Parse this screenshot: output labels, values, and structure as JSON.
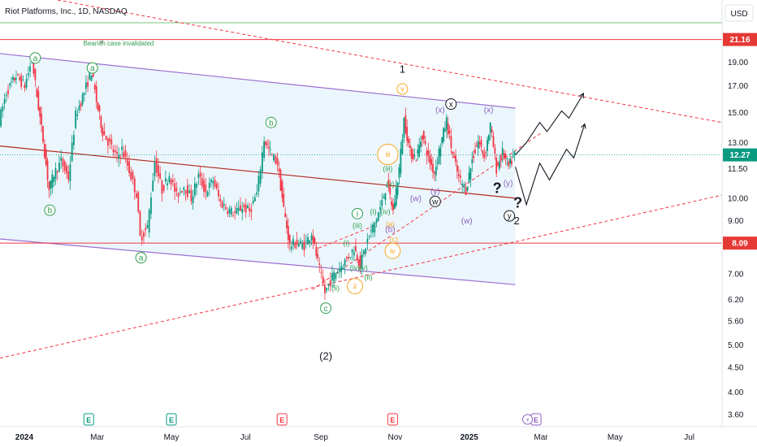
{
  "header": {
    "title": "Riot Platforms, Inc., 1D, NASDAQ",
    "currency": "USD"
  },
  "colors": {
    "up": "#089981",
    "down": "#f23645",
    "channel_line": "#9c6fd1",
    "channel_fill": "#e6f4fb",
    "trend": "#f23645",
    "price_badge": "#089981",
    "level_badge": "#e53935",
    "green_label": "#2e9e4f",
    "orange_label": "#f5a623",
    "purple_label": "#8e5fc2"
  },
  "price_badges": [
    {
      "label": "21.16",
      "value": 21.16,
      "kind": "level"
    },
    {
      "label": "12.27",
      "value": 12.27,
      "kind": "price"
    },
    {
      "label": "8.09",
      "value": 8.09,
      "kind": "level"
    }
  ],
  "annotations": {
    "bearish_note": "Bearish case invalidated"
  },
  "wave_labels": [
    {
      "text": "a",
      "x": "2024-01-10",
      "y": 19.4,
      "style": "green-circle"
    },
    {
      "text": "b",
      "x": "2024-01-22",
      "y": 9.45,
      "style": "green-circle"
    },
    {
      "text": "a",
      "x": "2024-02-26",
      "y": 18.5,
      "style": "green-circle"
    },
    {
      "text": "a",
      "x": "2024-04-06",
      "y": 7.55,
      "style": "green-circle"
    },
    {
      "text": "b",
      "x": "2024-07-22",
      "y": 14.3,
      "style": "green-circle"
    },
    {
      "text": "c",
      "x": "2024-09-05",
      "y": 5.95,
      "style": "green-circle"
    },
    {
      "text": "(2)",
      "x": "2024-09-05",
      "y": 4.75,
      "style": "black-text"
    },
    {
      "text": "1",
      "x": "2024-11-07",
      "y": 18.4,
      "style": "black-text"
    },
    {
      "text": "v",
      "x": "2024-11-07",
      "y": 16.75,
      "style": "orange-circle"
    },
    {
      "text": "x",
      "x": "2024-12-17",
      "y": 15.6,
      "style": "black-circle"
    },
    {
      "text": "(x)",
      "x": "2024-12-08",
      "y": 15.2,
      "style": "purple-text"
    },
    {
      "text": "(x)",
      "x": "2025-01-17",
      "y": 15.2,
      "style": "purple-text"
    },
    {
      "text": "(w)",
      "x": "2024-11-18",
      "y": 10.0,
      "style": "purple-text"
    },
    {
      "text": "w",
      "x": "2024-12-04",
      "y": 9.85,
      "style": "black-circle"
    },
    {
      "text": "(y)",
      "x": "2024-12-04",
      "y": 10.35,
      "style": "purple-text"
    },
    {
      "text": "(w)",
      "x": "2024-12-30",
      "y": 9.0,
      "style": "purple-text"
    },
    {
      "text": "(y)",
      "x": "2025-02-02",
      "y": 10.75,
      "style": "purple-text"
    },
    {
      "text": "y",
      "x": "2025-02-03",
      "y": 9.2,
      "style": "black-circle"
    },
    {
      "text": "2",
      "x": "2025-02-09",
      "y": 9.0,
      "style": "black-text"
    },
    {
      "text": "?",
      "x": "2025-01-24",
      "y": 10.5,
      "style": "black-big"
    },
    {
      "text": "?",
      "x": "2025-02-10",
      "y": 9.8,
      "style": "black-big"
    },
    {
      "text": "iii",
      "x": "2024-10-26",
      "y": 12.3,
      "style": "orange-circle"
    },
    {
      "text": "(iii)",
      "x": "2024-10-26",
      "y": 11.5,
      "style": "green-text"
    },
    {
      "text": "(v)",
      "x": "2024-10-28",
      "y": 10.7,
      "style": "green-text"
    },
    {
      "text": "(iv)",
      "x": "2024-10-24",
      "y": 9.4,
      "style": "green-text"
    },
    {
      "text": "(a)",
      "x": "2024-10-28",
      "y": 8.85,
      "style": "orange-text"
    },
    {
      "text": "(b)",
      "x": "2024-10-28",
      "y": 8.65,
      "style": "purple-text"
    },
    {
      "text": "(c)",
      "x": "2024-10-31",
      "y": 8.25,
      "style": "orange-text"
    },
    {
      "text": "iv",
      "x": "2024-10-30",
      "y": 7.8,
      "style": "orange-circle"
    },
    {
      "text": "(i)",
      "x": "2024-10-14",
      "y": 9.4,
      "style": "green-text"
    },
    {
      "text": "i",
      "x": "2024-10-01",
      "y": 9.3,
      "style": "green-circle"
    },
    {
      "text": "(iii)",
      "x": "2024-10-01",
      "y": 8.8,
      "style": "green-text"
    },
    {
      "text": "(i)",
      "x": "2024-09-22",
      "y": 8.1,
      "style": "green-text"
    },
    {
      "text": "(v)",
      "x": "2024-10-06",
      "y": 7.2,
      "style": "green-text"
    },
    {
      "text": "(iv)",
      "x": "2024-09-29",
      "y": 7.2,
      "style": "green-text"
    },
    {
      "text": "(ii)",
      "x": "2024-10-10",
      "y": 6.9,
      "style": "green-text"
    },
    {
      "text": "(ii)",
      "x": "2024-09-13",
      "y": 6.55,
      "style": "green-text"
    },
    {
      "text": "ii",
      "x": "2024-09-29",
      "y": 6.6,
      "style": "orange-circle"
    }
  ],
  "earnings_marks": [
    {
      "x": "2024-02-23",
      "label": "E",
      "kind": "green"
    },
    {
      "x": "2024-05-01",
      "label": "E",
      "kind": "green"
    },
    {
      "x": "2024-07-31",
      "label": "E",
      "kind": "red"
    },
    {
      "x": "2024-10-30",
      "label": "E",
      "kind": "red"
    },
    {
      "x": "2025-02-25",
      "label": "E",
      "kind": "purple"
    }
  ],
  "chart_data": {
    "type": "candlestick",
    "title": "Riot Platforms, Inc., 1D, NASDAQ",
    "scale": "log",
    "ylim": [
      3.4,
      25.5
    ],
    "xlim": [
      "2023-12-12",
      "2025-07-28"
    ],
    "x_ticks": [
      {
        "label": "2024",
        "date": "2024-01-01"
      },
      {
        "label": "Mar",
        "date": "2024-03-01"
      },
      {
        "label": "May",
        "date": "2024-05-01"
      },
      {
        "label": "Jul",
        "date": "2024-07-01"
      },
      {
        "label": "Sep",
        "date": "2024-09-01"
      },
      {
        "label": "Nov",
        "date": "2024-11-01"
      },
      {
        "label": "2025",
        "date": "2025-01-01"
      },
      {
        "label": "Mar",
        "date": "2025-03-01"
      },
      {
        "label": "May",
        "date": "2025-05-01"
      },
      {
        "label": "Jul",
        "date": "2025-07-01"
      }
    ],
    "y_ticks": [
      19.0,
      17.0,
      15.0,
      13.0,
      11.5,
      10.0,
      9.0,
      7.0,
      6.2,
      5.6,
      5.0,
      4.5,
      4.0,
      3.6
    ],
    "close_series": [
      {
        "x": "2023-12-12",
        "y": 14.4
      },
      {
        "x": "2023-12-18",
        "y": 16.5
      },
      {
        "x": "2023-12-26",
        "y": 17.8
      },
      {
        "x": "2024-01-02",
        "y": 17.0
      },
      {
        "x": "2024-01-08",
        "y": 19.2
      },
      {
        "x": "2024-01-12",
        "y": 16.2
      },
      {
        "x": "2024-01-17",
        "y": 13.2
      },
      {
        "x": "2024-01-22",
        "y": 10.4
      },
      {
        "x": "2024-01-26",
        "y": 11.2
      },
      {
        "x": "2024-02-01",
        "y": 11.9
      },
      {
        "x": "2024-02-07",
        "y": 11.0
      },
      {
        "x": "2024-02-13",
        "y": 14.8
      },
      {
        "x": "2024-02-20",
        "y": 16.5
      },
      {
        "x": "2024-02-26",
        "y": 18.2
      },
      {
        "x": "2024-03-01",
        "y": 15.8
      },
      {
        "x": "2024-03-06",
        "y": 13.7
      },
      {
        "x": "2024-03-12",
        "y": 12.9
      },
      {
        "x": "2024-03-18",
        "y": 12.1
      },
      {
        "x": "2024-03-22",
        "y": 12.6
      },
      {
        "x": "2024-03-28",
        "y": 11.4
      },
      {
        "x": "2024-04-03",
        "y": 10.2
      },
      {
        "x": "2024-04-06",
        "y": 8.3
      },
      {
        "x": "2024-04-12",
        "y": 8.7
      },
      {
        "x": "2024-04-18",
        "y": 11.9
      },
      {
        "x": "2024-04-24",
        "y": 10.4
      },
      {
        "x": "2024-04-30",
        "y": 11.2
      },
      {
        "x": "2024-05-06",
        "y": 10.1
      },
      {
        "x": "2024-05-12",
        "y": 10.6
      },
      {
        "x": "2024-05-18",
        "y": 10.0
      },
      {
        "x": "2024-05-24",
        "y": 11.1
      },
      {
        "x": "2024-05-30",
        "y": 10.3
      },
      {
        "x": "2024-06-05",
        "y": 10.9
      },
      {
        "x": "2024-06-11",
        "y": 9.8
      },
      {
        "x": "2024-06-17",
        "y": 9.5
      },
      {
        "x": "2024-06-23",
        "y": 9.3
      },
      {
        "x": "2024-06-29",
        "y": 9.6
      },
      {
        "x": "2024-07-05",
        "y": 9.4
      },
      {
        "x": "2024-07-11",
        "y": 10.2
      },
      {
        "x": "2024-07-17",
        "y": 13.2
      },
      {
        "x": "2024-07-22",
        "y": 12.4
      },
      {
        "x": "2024-07-28",
        "y": 11.8
      },
      {
        "x": "2024-08-02",
        "y": 9.5
      },
      {
        "x": "2024-08-07",
        "y": 8.0
      },
      {
        "x": "2024-08-13",
        "y": 8.1
      },
      {
        "x": "2024-08-19",
        "y": 8.0
      },
      {
        "x": "2024-08-25",
        "y": 8.5
      },
      {
        "x": "2024-08-30",
        "y": 7.4
      },
      {
        "x": "2024-09-05",
        "y": 6.4
      },
      {
        "x": "2024-09-11",
        "y": 6.9
      },
      {
        "x": "2024-09-17",
        "y": 7.2
      },
      {
        "x": "2024-09-23",
        "y": 7.5
      },
      {
        "x": "2024-09-29",
        "y": 7.9
      },
      {
        "x": "2024-10-04",
        "y": 7.3
      },
      {
        "x": "2024-10-10",
        "y": 8.2
      },
      {
        "x": "2024-10-16",
        "y": 8.9
      },
      {
        "x": "2024-10-22",
        "y": 9.8
      },
      {
        "x": "2024-10-26",
        "y": 10.8
      },
      {
        "x": "2024-10-31",
        "y": 9.4
      },
      {
        "x": "2024-11-05",
        "y": 11.5
      },
      {
        "x": "2024-11-09",
        "y": 14.5
      },
      {
        "x": "2024-11-14",
        "y": 12.4
      },
      {
        "x": "2024-11-19",
        "y": 12.1
      },
      {
        "x": "2024-11-24",
        "y": 13.5
      },
      {
        "x": "2024-11-29",
        "y": 12.1
      },
      {
        "x": "2024-12-04",
        "y": 11.3
      },
      {
        "x": "2024-12-09",
        "y": 12.9
      },
      {
        "x": "2024-12-14",
        "y": 14.4
      },
      {
        "x": "2024-12-19",
        "y": 12.3
      },
      {
        "x": "2024-12-24",
        "y": 11.0
      },
      {
        "x": "2024-12-30",
        "y": 10.4
      },
      {
        "x": "2025-01-04",
        "y": 12.0
      },
      {
        "x": "2025-01-09",
        "y": 13.1
      },
      {
        "x": "2025-01-14",
        "y": 12.2
      },
      {
        "x": "2025-01-19",
        "y": 14.1
      },
      {
        "x": "2025-01-24",
        "y": 11.5
      },
      {
        "x": "2025-01-29",
        "y": 12.4
      },
      {
        "x": "2025-02-03",
        "y": 11.6
      },
      {
        "x": "2025-02-08",
        "y": 12.27
      }
    ],
    "channel": {
      "upper": [
        {
          "x": "2023-12-12",
          "y": 19.8
        },
        {
          "x": "2025-02-08",
          "y": 15.3
        }
      ],
      "middle": [
        {
          "x": "2023-12-12",
          "y": 12.8
        },
        {
          "x": "2025-02-08",
          "y": 10.0
        }
      ],
      "lower": [
        {
          "x": "2023-12-12",
          "y": 8.25
        },
        {
          "x": "2025-02-08",
          "y": 6.65
        }
      ]
    },
    "trendlines": [
      {
        "style": "dashed",
        "points": [
          {
            "x": "2023-12-12",
            "y": 4.7
          },
          {
            "x": "2025-07-28",
            "y": 10.15
          }
        ]
      },
      {
        "style": "dashed",
        "points": [
          {
            "x": "2024-08-25",
            "y": 6.5
          },
          {
            "x": "2025-03-01",
            "y": 13.6
          }
        ]
      },
      {
        "style": "dashed",
        "points": [
          {
            "x": "2024-01-10",
            "y": 26.0
          },
          {
            "x": "2025-07-28",
            "y": 14.3
          }
        ]
      },
      {
        "style": "dashed",
        "points": [
          {
            "x": "2024-08-30",
            "y": 7.9
          },
          {
            "x": "2024-10-16",
            "y": 8.8
          }
        ]
      }
    ],
    "horizontal_levels": [
      21.16,
      8.09
    ],
    "current_price": 12.27,
    "projection_paths": [
      [
        {
          "x": "2025-02-08",
          "y": 12.27
        },
        {
          "x": "2025-02-17",
          "y": 13.0
        },
        {
          "x": "2025-02-28",
          "y": 14.3
        },
        {
          "x": "2025-03-06",
          "y": 13.7
        },
        {
          "x": "2025-03-18",
          "y": 15.1
        },
        {
          "x": "2025-03-24",
          "y": 14.6
        },
        {
          "x": "2025-04-05",
          "y": 16.4
        }
      ],
      [
        {
          "x": "2025-02-08",
          "y": 11.6
        },
        {
          "x": "2025-02-17",
          "y": 9.7
        },
        {
          "x": "2025-02-28",
          "y": 11.8
        },
        {
          "x": "2025-03-08",
          "y": 10.9
        },
        {
          "x": "2025-03-22",
          "y": 12.6
        },
        {
          "x": "2025-03-28",
          "y": 12.1
        },
        {
          "x": "2025-04-06",
          "y": 14.2
        }
      ]
    ]
  }
}
